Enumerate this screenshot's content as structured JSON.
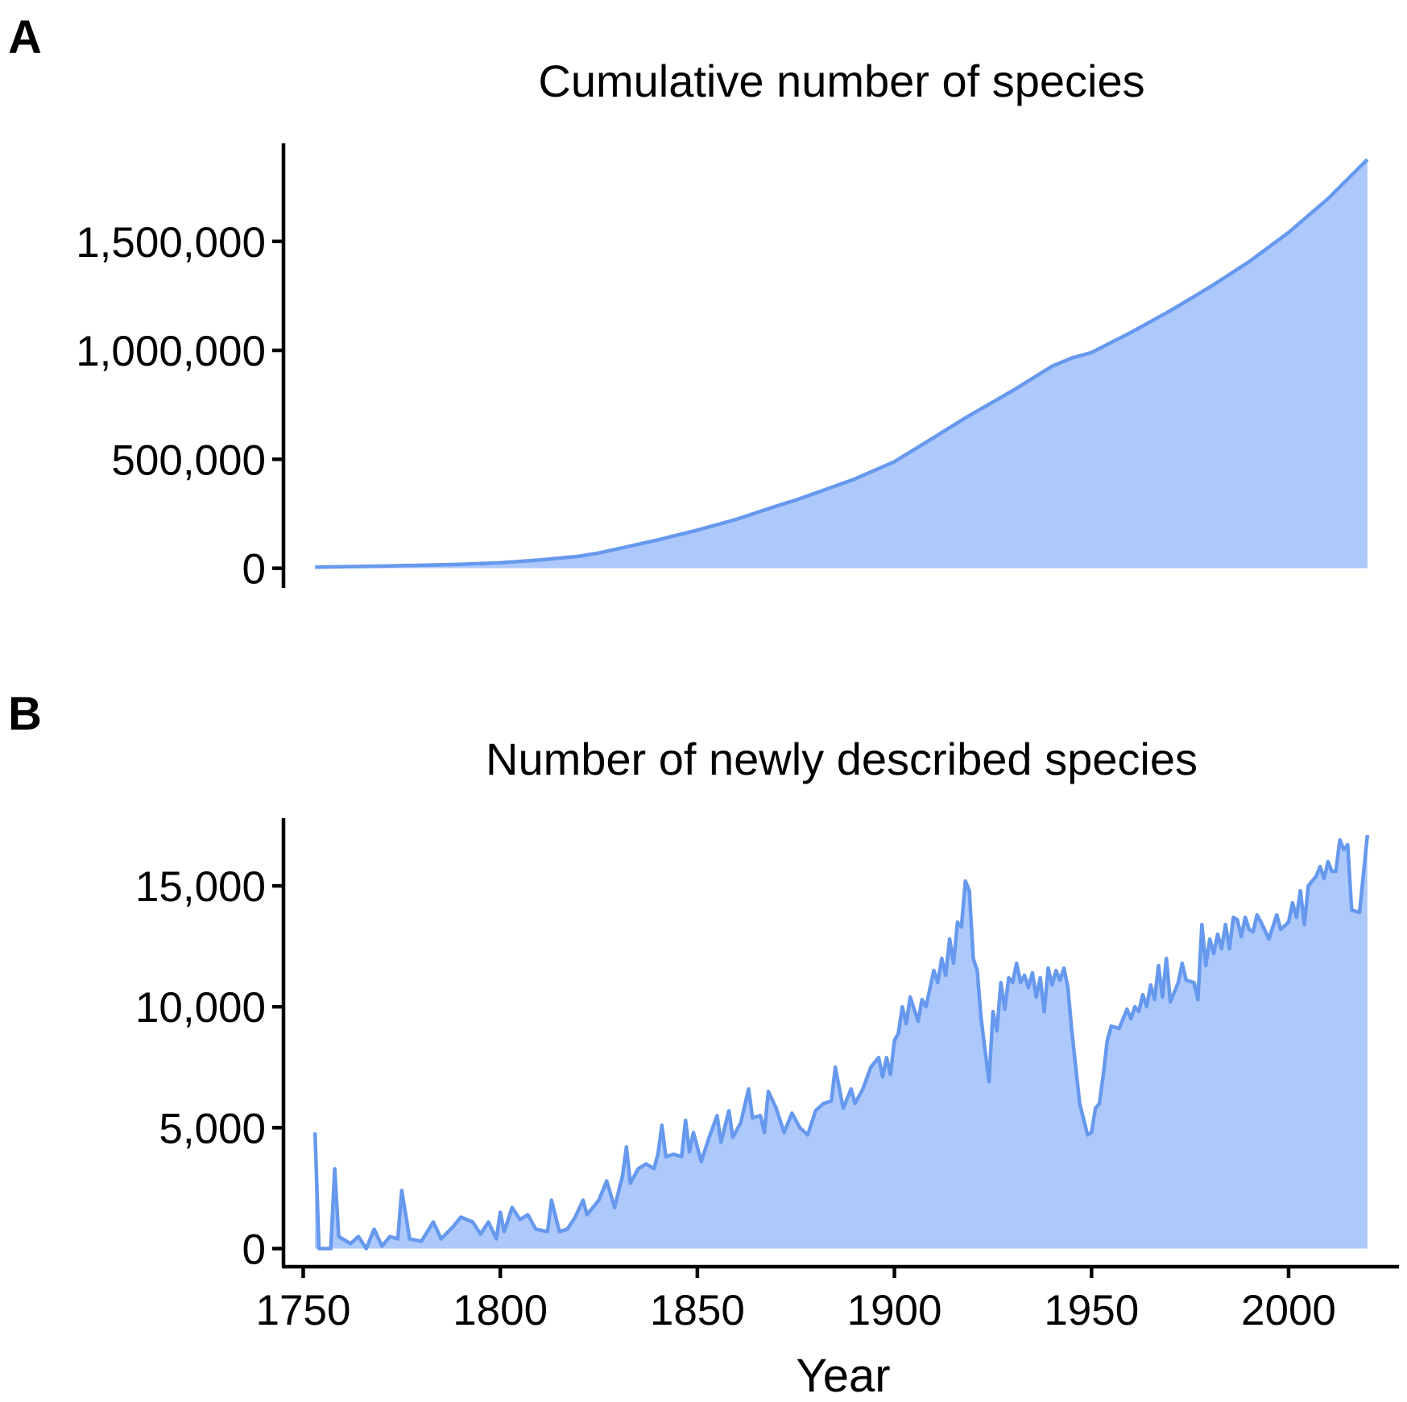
{
  "chart_data": [
    {
      "panel": "A",
      "type": "area",
      "title": "Cumulative number of species",
      "xlabel": "",
      "ylabel": "",
      "xlim": [
        1745,
        2028
      ],
      "ylim": [
        -90000,
        1950000
      ],
      "yticks": [
        0,
        500000,
        1000000,
        1500000
      ],
      "ytick_labels": [
        "0",
        "500,000",
        "1,000,000",
        "1,500,000"
      ],
      "grid": false,
      "colors": {
        "line": "#6699ee",
        "fill": "#adc9fb"
      },
      "x": [
        1753,
        1770,
        1790,
        1800,
        1810,
        1820,
        1825,
        1830,
        1840,
        1850,
        1860,
        1870,
        1875,
        1880,
        1890,
        1900,
        1910,
        1918,
        1930,
        1940,
        1945,
        1950,
        1960,
        1970,
        1980,
        1990,
        2000,
        2010,
        2020
      ],
      "y": [
        5000,
        10000,
        18000,
        25000,
        38000,
        55000,
        70000,
        90000,
        130000,
        175000,
        225000,
        285000,
        313000,
        345000,
        410000,
        489000,
        600000,
        690000,
        815000,
        927000,
        965000,
        990000,
        1082000,
        1182000,
        1290000,
        1407000,
        1541000,
        1696000,
        1876000
      ]
    },
    {
      "panel": "B",
      "type": "area",
      "title": "Number of newly described species",
      "xlabel": "Year",
      "ylabel": "",
      "xlim": [
        1745,
        2028
      ],
      "ylim": [
        -750,
        17800
      ],
      "xticks": [
        1750,
        1800,
        1850,
        1900,
        1950,
        2000
      ],
      "xtick_labels": [
        "1750",
        "1800",
        "1850",
        "1900",
        "1950",
        "2000"
      ],
      "yticks": [
        0,
        5000,
        10000,
        15000
      ],
      "ytick_labels": [
        "0",
        "5,000",
        "10,000",
        "15,000"
      ],
      "grid": false,
      "colors": {
        "line": "#6699ee",
        "fill": "#adc9fb"
      },
      "x": [
        1753,
        1754,
        1757,
        1758,
        1759,
        1762,
        1764,
        1766,
        1768,
        1770,
        1772,
        1774,
        1775,
        1777,
        1780,
        1783,
        1785,
        1788,
        1790,
        1793,
        1795,
        1797,
        1799,
        1800,
        1801,
        1803,
        1805,
        1807,
        1809,
        1812,
        1813,
        1815,
        1817,
        1819,
        1821,
        1822,
        1825,
        1827,
        1829,
        1831,
        1832,
        1833,
        1835,
        1837,
        1839,
        1840,
        1841,
        1842,
        1844,
        1846,
        1847,
        1848,
        1849,
        1851,
        1853,
        1855,
        1856,
        1858,
        1859,
        1861,
        1863,
        1864,
        1866,
        1867,
        1868,
        1870,
        1872,
        1874,
        1876,
        1878,
        1880,
        1882,
        1884,
        1885,
        1887,
        1889,
        1890,
        1892,
        1894,
        1896,
        1897,
        1898,
        1899,
        1900,
        1901,
        1902,
        1903,
        1904,
        1906,
        1907,
        1908,
        1910,
        1911,
        1912,
        1913,
        1914,
        1915,
        1916,
        1917,
        1918,
        1919,
        1920,
        1921,
        1922,
        1924,
        1925,
        1926,
        1927,
        1928,
        1929,
        1930,
        1931,
        1932,
        1933,
        1934,
        1935,
        1936,
        1937,
        1938,
        1939,
        1940,
        1941,
        1942,
        1943,
        1944,
        1945,
        1947,
        1949,
        1950,
        1951,
        1952,
        1953,
        1954,
        1955,
        1957,
        1958,
        1959,
        1960,
        1961,
        1962,
        1963,
        1964,
        1965,
        1966,
        1967,
        1968,
        1969,
        1970,
        1972,
        1973,
        1974,
        1976,
        1977,
        1978,
        1979,
        1980,
        1981,
        1982,
        1983,
        1984,
        1985,
        1986,
        1987,
        1988,
        1989,
        1990,
        1991,
        1992,
        1993,
        1995,
        1997,
        1998,
        2000,
        2001,
        2002,
        2003,
        2004,
        2005,
        2006,
        2007,
        2008,
        2009,
        2010,
        2011,
        2012,
        2013,
        2014,
        2015,
        2016,
        2018,
        2020
      ],
      "y": [
        4800,
        0,
        0,
        3300,
        500,
        200,
        500,
        0,
        800,
        100,
        500,
        400,
        2400,
        400,
        300,
        1100,
        400,
        900,
        1300,
        1100,
        600,
        1100,
        400,
        1500,
        700,
        1700,
        1200,
        1400,
        800,
        700,
        2000,
        700,
        800,
        1300,
        2000,
        1400,
        2000,
        2800,
        1700,
        3000,
        4200,
        2700,
        3300,
        3500,
        3300,
        3900,
        5100,
        3800,
        3900,
        3800,
        5300,
        4000,
        4800,
        3600,
        4600,
        5500,
        4400,
        5700,
        4600,
        5200,
        6600,
        5400,
        5500,
        4800,
        6500,
        5800,
        4800,
        5600,
        5000,
        4700,
        5700,
        6000,
        6100,
        7500,
        5800,
        6600,
        6000,
        6600,
        7500,
        7900,
        7100,
        7900,
        7200,
        8600,
        8900,
        10000,
        9300,
        10400,
        9400,
        10300,
        10000,
        11500,
        11000,
        12000,
        11300,
        12800,
        11800,
        13500,
        13300,
        15200,
        14800,
        12000,
        11500,
        9500,
        6900,
        9800,
        9000,
        11000,
        9900,
        11200,
        11000,
        11800,
        11000,
        11300,
        10800,
        11400,
        10400,
        11200,
        9800,
        11600,
        10900,
        11500,
        11100,
        11600,
        10800,
        9000,
        6000,
        4700,
        4800,
        5800,
        6000,
        7200,
        8600,
        9200,
        9100,
        9500,
        9900,
        9500,
        10000,
        9800,
        10500,
        10000,
        10900,
        10300,
        11700,
        10400,
        12000,
        10200,
        11000,
        11800,
        11100,
        11000,
        10300,
        13400,
        11700,
        12800,
        12200,
        13000,
        12400,
        13400,
        12400,
        13700,
        13600,
        12900,
        13700,
        13200,
        13100,
        13800,
        13500,
        12800,
        13800,
        13200,
        13500,
        14300,
        13700,
        14800,
        13400,
        15000,
        15200,
        15400,
        15800,
        15300,
        16000,
        15600,
        15600,
        16900,
        16500,
        16700,
        14000,
        13900,
        17100
      ]
    }
  ],
  "panel_labels": {
    "a": "A",
    "b": "B"
  }
}
